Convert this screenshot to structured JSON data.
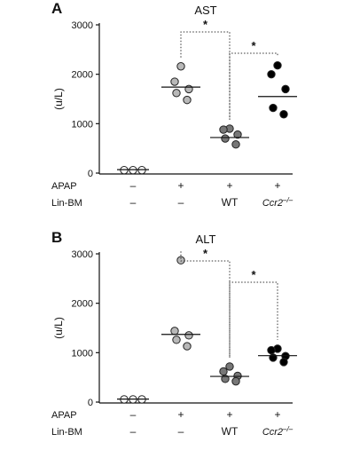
{
  "chart_data": [
    {
      "panel_label": "A",
      "type": "scatter",
      "title": "AST",
      "ylabel": "(u/L)",
      "ylim": [
        0,
        3000
      ],
      "yticks": [
        "0",
        "1000",
        "2000",
        "3000"
      ],
      "groups": [
        "1",
        "2",
        "3",
        "4"
      ],
      "condition_rows": [
        {
          "label": "APAP",
          "values": [
            "–",
            "+",
            "+",
            "+"
          ]
        },
        {
          "label": "Lin-BM",
          "values": [
            "–",
            "–",
            "WT",
            "Ccr2–/–"
          ]
        }
      ],
      "series": [
        {
          "fill": "#ffffff",
          "values": [
            60,
            60,
            60
          ],
          "mean": 70
        },
        {
          "fill": "#b8b8b8",
          "values": [
            2160,
            1850,
            1700,
            1620,
            1480
          ],
          "mean": 1740
        },
        {
          "fill": "#777777",
          "values": [
            900,
            880,
            780,
            700,
            580
          ],
          "mean": 720
        },
        {
          "fill": "#000000",
          "values": [
            2180,
            2000,
            1700,
            1320,
            1190
          ],
          "mean": 1550
        }
      ],
      "comparisons": [
        {
          "from": 2,
          "to": 3,
          "label": "*"
        },
        {
          "from": 3,
          "to": 4,
          "label": "*"
        }
      ]
    },
    {
      "panel_label": "B",
      "type": "scatter",
      "title": "ALT",
      "ylabel": "(u/L)",
      "ylim": [
        0,
        3000
      ],
      "yticks": [
        "0",
        "1000",
        "2000",
        "3000"
      ],
      "groups": [
        "1",
        "2",
        "3",
        "4"
      ],
      "condition_rows": [
        {
          "label": "APAP",
          "values": [
            "–",
            "+",
            "+",
            "+"
          ]
        },
        {
          "label": "Lin-BM",
          "values": [
            "–",
            "–",
            "WT",
            "Ccr2–/–"
          ]
        }
      ],
      "series": [
        {
          "fill": "#ffffff",
          "values": [
            55,
            55,
            55
          ],
          "mean": 60
        },
        {
          "fill": "#b8b8b8",
          "values": [
            2870,
            1440,
            1350,
            1260,
            1130
          ],
          "mean": 1370
        },
        {
          "fill": "#777777",
          "values": [
            720,
            620,
            530,
            470,
            420
          ],
          "mean": 520
        },
        {
          "fill": "#000000",
          "values": [
            1080,
            1050,
            930,
            900,
            810
          ],
          "mean": 940
        }
      ],
      "comparisons": [
        {
          "from": 2,
          "to": 3,
          "label": "*"
        },
        {
          "from": 3,
          "to": 4,
          "label": "*"
        }
      ]
    }
  ]
}
